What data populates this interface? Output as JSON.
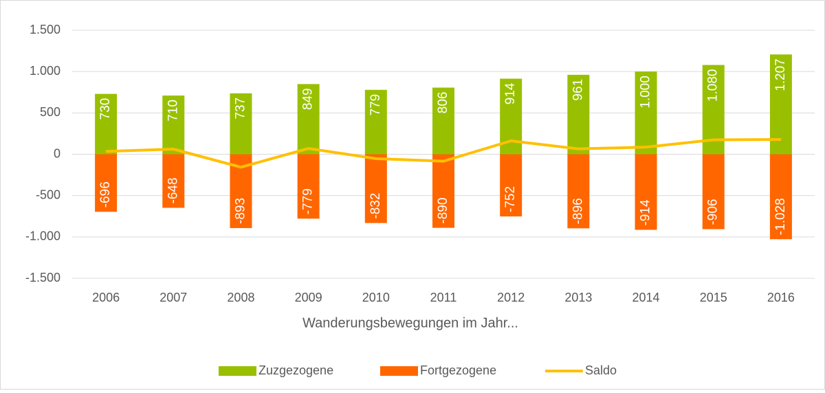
{
  "chart_data": {
    "type": "bar",
    "x_label": "Wanderungsbewegungen im Jahr...",
    "categories": [
      "2006",
      "2007",
      "2008",
      "2009",
      "2010",
      "2011",
      "2012",
      "2013",
      "2014",
      "2015",
      "2016"
    ],
    "series": [
      {
        "name": "Zuzgezogene",
        "type": "bar",
        "color": "#99c000",
        "values": [
          730,
          710,
          737,
          849,
          779,
          806,
          914,
          961,
          1000,
          1080,
          1207
        ],
        "value_labels": [
          "730",
          "710",
          "737",
          "849",
          "779",
          "806",
          "914",
          "961",
          "1.000",
          "1.080",
          "1.207"
        ]
      },
      {
        "name": "Fortgezogene",
        "type": "bar",
        "color": "#ff6600",
        "values": [
          -696,
          -648,
          -893,
          -779,
          -832,
          -890,
          -752,
          -896,
          -914,
          -906,
          -1028
        ],
        "value_labels": [
          "-696",
          "-648",
          "-893",
          "-779",
          "-832",
          "-890",
          "-752",
          "-896",
          "-914",
          "-906",
          "-1.028"
        ]
      },
      {
        "name": "Saldo",
        "type": "line",
        "color": "#ffc000",
        "values": [
          34,
          62,
          -156,
          70,
          -53,
          -84,
          162,
          65,
          86,
          174,
          179
        ]
      }
    ],
    "ylim": [
      -1500,
      1500
    ],
    "yticks": [
      {
        "value": -1500,
        "label": "-1.500"
      },
      {
        "value": -1000,
        "label": "-1.000"
      },
      -500,
      0,
      500,
      {
        "value": 1000,
        "label": "1.000"
      },
      {
        "value": 1500,
        "label": "1.500"
      }
    ],
    "grid": true,
    "legend": "bottom"
  }
}
